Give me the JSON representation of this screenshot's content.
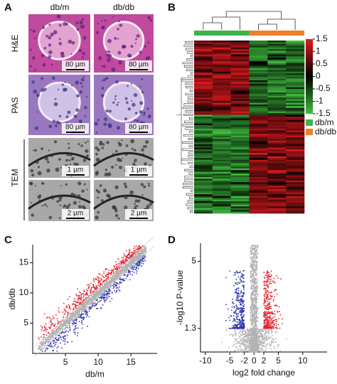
{
  "panels": [
    {
      "label": "A",
      "columns": [
        "db/m",
        "db/db"
      ],
      "rows": [
        "H&E",
        "PAS",
        "TEM"
      ],
      "scale_bars": [
        "80 µm",
        "80 µm",
        "80 µm",
        "80 µm",
        "1 µm",
        "1 µm",
        "2 µm",
        "2 µm"
      ]
    },
    {
      "label": "B",
      "colorbar": {
        "ticks": [
          1.5,
          1,
          0.5,
          0,
          -0.5,
          -1,
          -1.5
        ],
        "colors": {
          "high": "#e3191e",
          "mid": "#000000",
          "low": "#3fbf3f"
        }
      },
      "legend": [
        {
          "name": "db/m",
          "color": "#3cb44b"
        },
        {
          "name": "db/db",
          "color": "#f07f2a"
        }
      ]
    },
    {
      "label": "C",
      "xlabel": "db/m",
      "ylabel": "db/db",
      "xlim": [
        0,
        19
      ],
      "ylim": [
        0,
        18
      ],
      "xticks": [
        5,
        10,
        15
      ],
      "yticks": [
        5,
        10,
        15
      ],
      "colors": {
        "up": "#e8202a",
        "down": "#2b35b0",
        "ns": "#b3b3b3"
      }
    },
    {
      "label": "D",
      "xlabel": "log2 fold change",
      "ylabel": "-log10 P-value",
      "xlim": [
        -11,
        15
      ],
      "ylim": [
        0,
        6
      ],
      "xticks": [
        -10,
        -5,
        -2,
        0,
        2,
        5,
        10
      ],
      "yticks": [
        1.3,
        5
      ],
      "colors": {
        "up": "#e8202a",
        "down": "#2b35b0",
        "ns": "#b3b3b3"
      }
    }
  ]
}
